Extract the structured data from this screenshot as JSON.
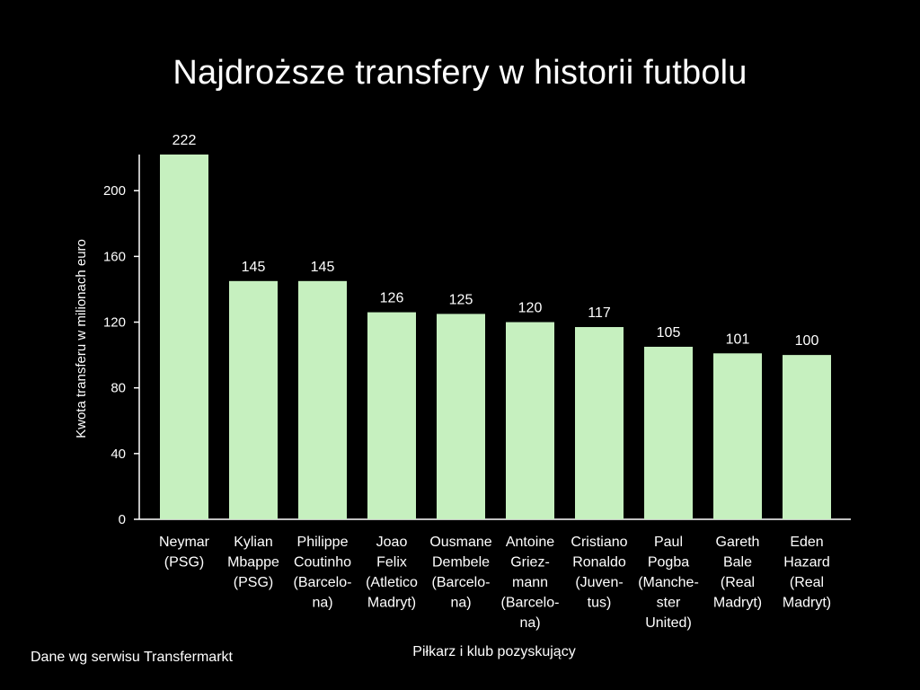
{
  "chart_data": {
    "type": "bar",
    "title": "Najdroższe transfery w historii futbolu",
    "xlabel": "Piłkarz i klub pozyskujący",
    "ylabel": "Kwota transferu w milionach euro",
    "ylim": [
      0,
      222
    ],
    "yticks": [
      0,
      40,
      80,
      120,
      160,
      200
    ],
    "grid": false,
    "categories": [
      [
        "Neymar",
        "(PSG)"
      ],
      [
        "Kylian",
        "Mbappe",
        "(PSG)"
      ],
      [
        "Philippe",
        "Coutinho",
        "(Barcelo-",
        "na)"
      ],
      [
        "Joao",
        "Felix",
        "(Atletico",
        "Madryt)"
      ],
      [
        "Ousmane",
        "Dembele",
        "(Barcelo-",
        "na)"
      ],
      [
        "Antoine",
        "Griez-",
        "mann",
        "(Barcelo-",
        "na)"
      ],
      [
        "Cristiano",
        "Ronaldo",
        "(Juven-",
        "tus)"
      ],
      [
        "Paul",
        "Pogba",
        "(Manche-",
        "ster",
        "United)"
      ],
      [
        "Gareth",
        "Bale",
        "(Real",
        "Madryt)"
      ],
      [
        "Eden",
        "Hazard",
        "(Real",
        "Madryt)"
      ]
    ],
    "values": [
      222,
      145,
      145,
      126,
      125,
      120,
      117,
      105,
      101,
      100
    ],
    "bar_color": "#c6f0bf"
  },
  "source_note": "Dane wg serwisu Transfermarkt"
}
